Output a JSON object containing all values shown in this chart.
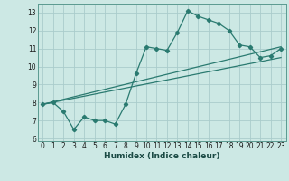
{
  "title": "",
  "xlabel": "Humidex (Indice chaleur)",
  "ylabel": "",
  "bg_color": "#cce8e4",
  "grid_color": "#aacccc",
  "line_color": "#2a7a70",
  "xlim": [
    -0.5,
    23.5
  ],
  "ylim": [
    5.85,
    13.5
  ],
  "xticks": [
    0,
    1,
    2,
    3,
    4,
    5,
    6,
    7,
    8,
    9,
    10,
    11,
    12,
    13,
    14,
    15,
    16,
    17,
    18,
    19,
    20,
    21,
    22,
    23
  ],
  "yticks": [
    6,
    7,
    8,
    9,
    10,
    11,
    12,
    13
  ],
  "line1": {
    "x": [
      0,
      1,
      2,
      3,
      4,
      5,
      6,
      7,
      8,
      9,
      10,
      11,
      12,
      13,
      14,
      15,
      16,
      17,
      18,
      19,
      20,
      21,
      22,
      23
    ],
    "y": [
      7.9,
      8.0,
      7.5,
      6.5,
      7.2,
      7.0,
      7.0,
      6.8,
      7.9,
      9.6,
      11.1,
      11.0,
      10.9,
      11.9,
      13.1,
      12.8,
      12.6,
      12.4,
      12.0,
      11.2,
      11.1,
      10.5,
      10.6,
      11.0
    ]
  },
  "line2": {
    "x": [
      0,
      23
    ],
    "y": [
      7.9,
      11.1
    ]
  },
  "line3": {
    "x": [
      0,
      23
    ],
    "y": [
      7.9,
      10.5
    ]
  }
}
